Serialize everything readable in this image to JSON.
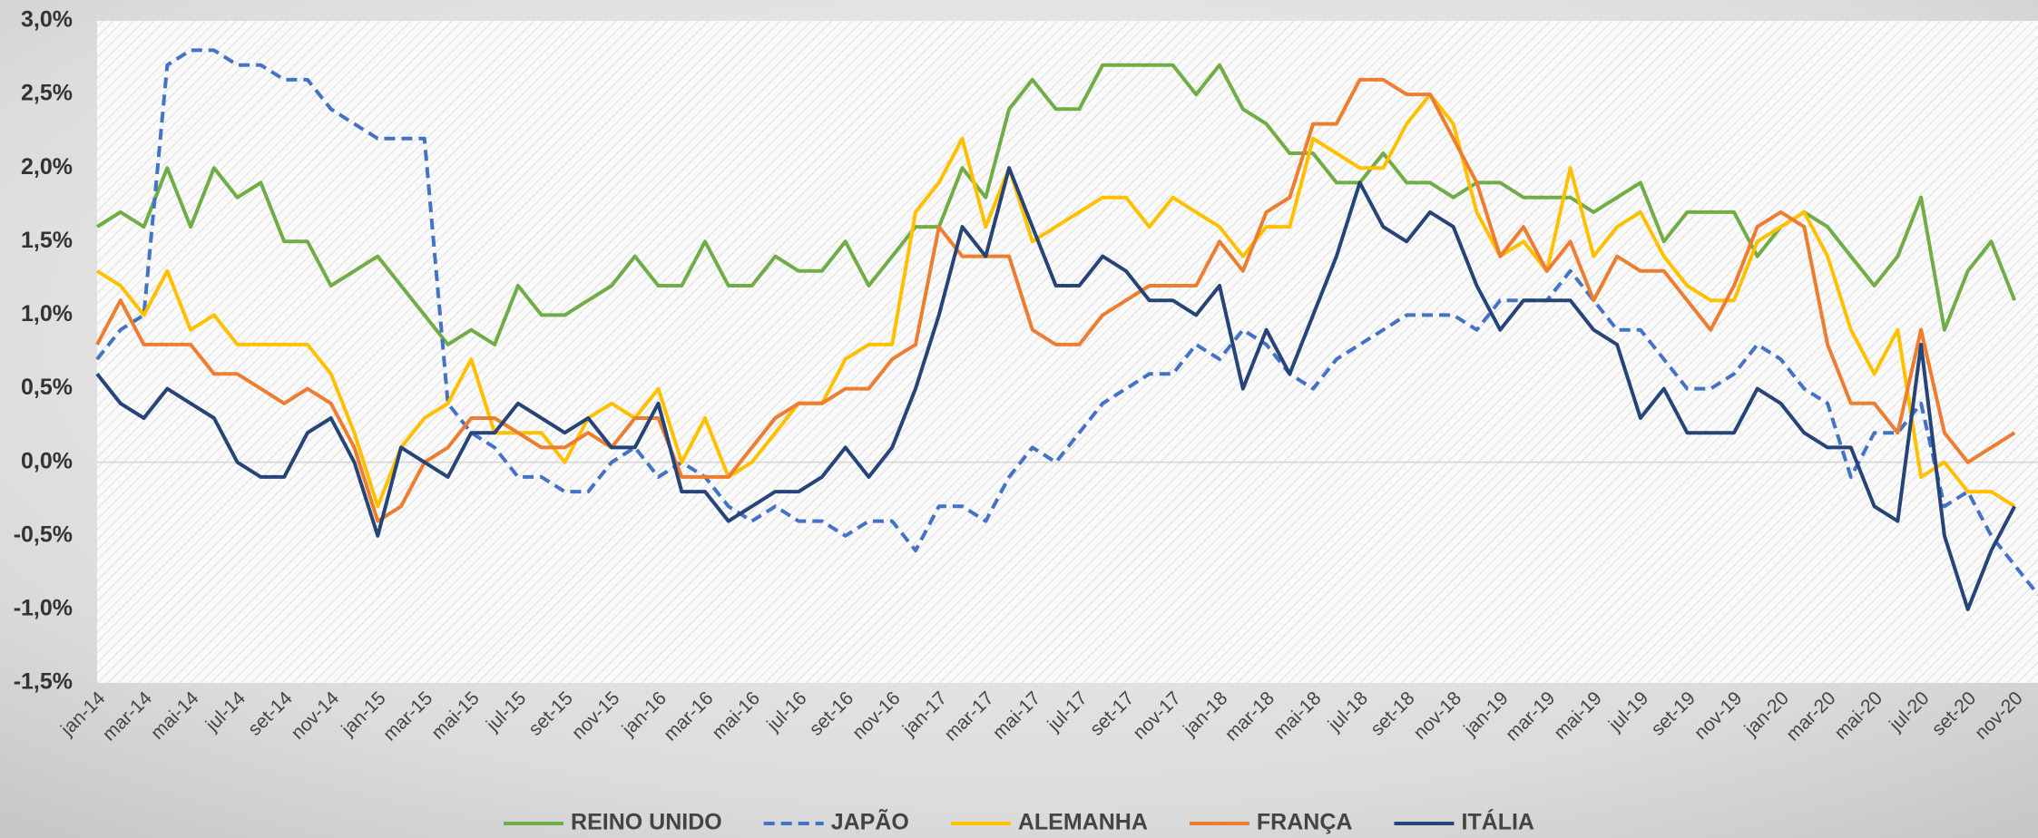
{
  "chart_data": {
    "type": "line",
    "categories": [
      "jan-14",
      null,
      "mar-14",
      null,
      "mai-14",
      null,
      "jul-14",
      null,
      "set-14",
      null,
      "nov-14",
      null,
      "jan-15",
      null,
      "mar-15",
      null,
      "mai-15",
      null,
      "jul-15",
      null,
      "set-15",
      null,
      "nov-15",
      null,
      "jan-16",
      null,
      "mar-16",
      null,
      "mai-16",
      null,
      "jul-16",
      null,
      "set-16",
      null,
      "nov-16",
      null,
      "jan-17",
      null,
      "mar-17",
      null,
      "mai-17",
      null,
      "jul-17",
      null,
      "set-17",
      null,
      "nov-17",
      null,
      "jan-18",
      null,
      "mar-18",
      null,
      "mai-18",
      null,
      "jul-18",
      null,
      "set-18",
      null,
      "nov-18",
      null,
      "jan-19",
      null,
      "mar-19",
      null,
      "mai-19",
      null,
      "jul-19",
      null,
      "set-19",
      null,
      "nov-19",
      null,
      "jan-20",
      null,
      "mar-20",
      null,
      "mai-20",
      null,
      "jul-20",
      null,
      "set-20",
      null,
      "nov-20",
      null
    ],
    "series": [
      {
        "name": "REINO UNIDO",
        "color": "#70ad47",
        "dashed": false,
        "values": [
          1.6,
          1.7,
          1.6,
          2.0,
          1.6,
          2.0,
          1.8,
          1.9,
          1.5,
          1.5,
          1.2,
          1.3,
          1.4,
          1.2,
          1.0,
          0.8,
          0.9,
          0.8,
          1.2,
          1.0,
          1.0,
          1.1,
          1.2,
          1.4,
          1.2,
          1.2,
          1.5,
          1.2,
          1.2,
          1.4,
          1.3,
          1.3,
          1.5,
          1.2,
          1.4,
          1.6,
          1.6,
          2.0,
          1.8,
          2.4,
          2.6,
          2.4,
          2.4,
          2.7,
          2.7,
          2.7,
          2.7,
          2.5,
          2.7,
          2.4,
          2.3,
          2.1,
          2.1,
          1.9,
          1.9,
          2.1,
          1.9,
          1.9,
          1.8,
          1.9,
          1.9,
          1.8,
          1.8,
          1.8,
          1.7,
          1.8,
          1.9,
          1.5,
          1.7,
          1.7,
          1.7,
          1.4,
          1.6,
          1.7,
          1.6,
          1.4,
          1.2,
          1.4,
          1.8,
          0.9,
          1.3,
          1.5,
          1.1,
          null
        ]
      },
      {
        "name": "JAPÃO",
        "color": "#4472c4",
        "dashed": true,
        "values": [
          0.7,
          0.9,
          1.0,
          2.7,
          2.8,
          2.8,
          2.7,
          2.7,
          2.6,
          2.6,
          2.4,
          2.3,
          2.2,
          2.2,
          2.2,
          0.4,
          0.2,
          0.1,
          -0.1,
          -0.1,
          -0.2,
          -0.2,
          0.0,
          0.1,
          -0.1,
          0.0,
          -0.1,
          -0.3,
          -0.4,
          -0.3,
          -0.4,
          -0.4,
          -0.5,
          -0.4,
          -0.4,
          -0.6,
          -0.3,
          -0.3,
          -0.4,
          -0.1,
          0.1,
          0.0,
          0.2,
          0.4,
          0.5,
          0.6,
          0.6,
          0.8,
          0.7,
          0.9,
          0.8,
          0.6,
          0.5,
          0.7,
          0.8,
          0.9,
          1.0,
          1.0,
          1.0,
          0.9,
          1.1,
          1.1,
          1.1,
          1.3,
          1.1,
          0.9,
          0.9,
          0.7,
          0.5,
          0.5,
          0.6,
          0.8,
          0.7,
          0.5,
          0.4,
          -0.1,
          0.2,
          0.2,
          0.4,
          -0.3,
          -0.2,
          -0.5,
          -0.7,
          -0.9
        ]
      },
      {
        "name": "ALEMANHA",
        "color": "#ffc000",
        "dashed": false,
        "values": [
          1.3,
          1.2,
          1.0,
          1.3,
          0.9,
          1.0,
          0.8,
          0.8,
          0.8,
          0.8,
          0.6,
          0.2,
          -0.3,
          0.1,
          0.3,
          0.4,
          0.7,
          0.2,
          0.2,
          0.2,
          0.0,
          0.3,
          0.4,
          0.3,
          0.5,
          0.0,
          0.3,
          -0.1,
          0.0,
          0.2,
          0.4,
          0.4,
          0.7,
          0.8,
          0.8,
          1.7,
          1.9,
          2.2,
          1.6,
          2.0,
          1.5,
          1.6,
          1.7,
          1.8,
          1.8,
          1.6,
          1.8,
          1.7,
          1.6,
          1.4,
          1.6,
          1.6,
          2.2,
          2.1,
          2.0,
          2.0,
          2.3,
          2.5,
          2.3,
          1.7,
          1.4,
          1.5,
          1.3,
          2.0,
          1.4,
          1.6,
          1.7,
          1.4,
          1.2,
          1.1,
          1.1,
          1.5,
          1.6,
          1.7,
          1.4,
          0.9,
          0.6,
          0.9,
          -0.1,
          0.0,
          -0.2,
          -0.2,
          -0.3,
          null
        ]
      },
      {
        "name": "FRANÇA",
        "color": "#ed7d31",
        "dashed": false,
        "values": [
          0.8,
          1.1,
          0.8,
          0.8,
          0.8,
          0.6,
          0.6,
          0.5,
          0.4,
          0.5,
          0.4,
          0.1,
          -0.4,
          -0.3,
          0.0,
          0.1,
          0.3,
          0.3,
          0.2,
          0.1,
          0.1,
          0.2,
          0.1,
          0.3,
          0.3,
          -0.1,
          -0.1,
          -0.1,
          0.1,
          0.3,
          0.4,
          0.4,
          0.5,
          0.5,
          0.7,
          0.8,
          1.6,
          1.4,
          1.4,
          1.4,
          0.9,
          0.8,
          0.8,
          1.0,
          1.1,
          1.2,
          1.2,
          1.2,
          1.5,
          1.3,
          1.7,
          1.8,
          2.3,
          2.3,
          2.6,
          2.6,
          2.5,
          2.5,
          2.2,
          1.9,
          1.4,
          1.6,
          1.3,
          1.5,
          1.1,
          1.4,
          1.3,
          1.3,
          1.1,
          0.9,
          1.2,
          1.6,
          1.7,
          1.6,
          0.8,
          0.4,
          0.4,
          0.2,
          0.9,
          0.2,
          0.0,
          0.1,
          0.2,
          null
        ]
      },
      {
        "name": "ITÁLIA",
        "color": "#264478",
        "dashed": false,
        "values": [
          0.6,
          0.4,
          0.3,
          0.5,
          0.4,
          0.3,
          0.0,
          -0.1,
          -0.1,
          0.2,
          0.3,
          0.0,
          -0.5,
          0.1,
          0.0,
          -0.1,
          0.2,
          0.2,
          0.4,
          0.3,
          0.2,
          0.3,
          0.1,
          0.1,
          0.4,
          -0.2,
          -0.2,
          -0.4,
          -0.3,
          -0.2,
          -0.2,
          -0.1,
          0.1,
          -0.1,
          0.1,
          0.5,
          1.0,
          1.6,
          1.4,
          2.0,
          1.6,
          1.2,
          1.2,
          1.4,
          1.3,
          1.1,
          1.1,
          1.0,
          1.2,
          0.5,
          0.9,
          0.6,
          1.0,
          1.4,
          1.9,
          1.6,
          1.5,
          1.7,
          1.6,
          1.2,
          0.9,
          1.1,
          1.1,
          1.1,
          0.9,
          0.8,
          0.3,
          0.5,
          0.2,
          0.2,
          0.2,
          0.5,
          0.4,
          0.2,
          0.1,
          0.1,
          -0.3,
          -0.4,
          0.8,
          -0.5,
          -1.0,
          -0.6,
          -0.3,
          null
        ]
      }
    ],
    "ylim": [
      -1.5,
      3.0
    ],
    "yticks": [
      {
        "value": -1.5,
        "label": "-1,5%"
      },
      {
        "value": -1.0,
        "label": "-1,0%"
      },
      {
        "value": -0.5,
        "label": "-0,5%"
      },
      {
        "value": 0,
        "label": "0,0%"
      },
      {
        "value": 0.5,
        "label": "0,5%"
      },
      {
        "value": 1.0,
        "label": "1,0%"
      },
      {
        "value": 1.5,
        "label": "1,5%"
      },
      {
        "value": 2.0,
        "label": "2,0%"
      },
      {
        "value": 2.5,
        "label": "2,5%"
      },
      {
        "value": 3.0,
        "label": "3,0%"
      }
    ],
    "legend": "bottom"
  }
}
